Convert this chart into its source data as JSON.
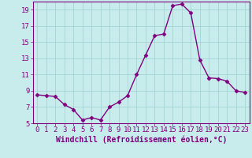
{
  "x": [
    0,
    1,
    2,
    3,
    4,
    5,
    6,
    7,
    8,
    9,
    10,
    11,
    12,
    13,
    14,
    15,
    16,
    17,
    18,
    19,
    20,
    21,
    22,
    23
  ],
  "y": [
    8.5,
    8.4,
    8.3,
    7.3,
    6.7,
    5.4,
    5.7,
    5.4,
    7.0,
    7.6,
    8.4,
    11.0,
    13.4,
    15.8,
    16.0,
    19.5,
    19.7,
    18.6,
    12.8,
    10.6,
    10.5,
    10.2,
    9.0,
    8.8
  ],
  "line_color": "#800080",
  "marker": "D",
  "marker_size": 2.5,
  "bg_color": "#c8ecec",
  "grid_color": "#9ecece",
  "axis_color": "#800080",
  "spine_color": "#800080",
  "xlabel": "Windchill (Refroidissement éolien,°C)",
  "ylim": [
    5,
    20
  ],
  "xlim": [
    -0.5,
    23.5
  ],
  "yticks": [
    5,
    7,
    9,
    11,
    13,
    15,
    17,
    19
  ],
  "xticks": [
    0,
    1,
    2,
    3,
    4,
    5,
    6,
    7,
    8,
    9,
    10,
    11,
    12,
    13,
    14,
    15,
    16,
    17,
    18,
    19,
    20,
    21,
    22,
    23
  ],
  "font_size": 6.5,
  "xlabel_fontsize": 7.0,
  "linewidth": 1.0
}
